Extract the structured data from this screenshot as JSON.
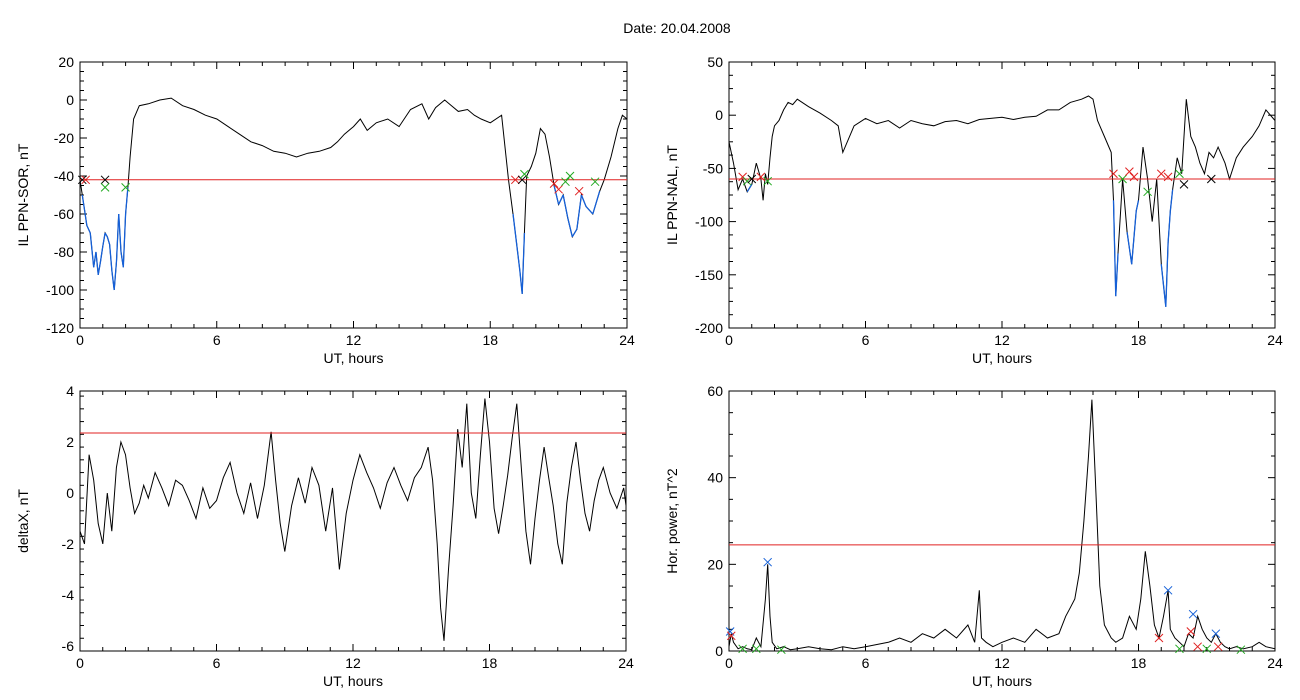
{
  "figure": {
    "title": "Date:  20.04.2008"
  },
  "chart_data": [
    {
      "id": "sor",
      "type": "line",
      "xlabel": "UT, hours",
      "ylabel": "IL PPN-SOR, nT",
      "xlim": [
        0,
        24
      ],
      "ylim": [
        -120,
        20
      ],
      "xticks": [
        0,
        6,
        12,
        18,
        24
      ],
      "yticks": [
        20,
        0,
        -20,
        -40,
        -60,
        -80,
        -100,
        -120
      ],
      "threshold": -42,
      "colors": {
        "line": "#000000",
        "below": "#1560d8",
        "threshold": "#e02020"
      },
      "series": [
        {
          "x": [
            0,
            0.1,
            0.2,
            0.3,
            0.45,
            0.6,
            0.7,
            0.8,
            0.9,
            1.0,
            1.1,
            1.2,
            1.3,
            1.4,
            1.5,
            1.6,
            1.7,
            1.8,
            1.9,
            2.0,
            2.1,
            2.2,
            2.35,
            2.6,
            3.0,
            3.5,
            4.0,
            4.5,
            5.0,
            5.5,
            6.0,
            6.5,
            7.0,
            7.5,
            8.0,
            8.5,
            9.0,
            9.5,
            10.0,
            10.5,
            11.0,
            11.3,
            11.6,
            12.0,
            12.3,
            12.6,
            13.0,
            13.5,
            14.0,
            14.5,
            15.0,
            15.3,
            15.6,
            16.0,
            16.3,
            16.6,
            17.0,
            17.3,
            17.6,
            18.0,
            18.5,
            18.8,
            19.0,
            19.15,
            19.3,
            19.4,
            19.5,
            19.6,
            19.8,
            20.0,
            20.2,
            20.4,
            20.6,
            20.8,
            21.0,
            21.2,
            21.4,
            21.6,
            21.8,
            22.0,
            22.2,
            22.5,
            22.8,
            23.0,
            23.3,
            23.6,
            23.8,
            24.0
          ],
          "y": [
            -42,
            -50,
            -58,
            -66,
            -70,
            -88,
            -80,
            -92,
            -85,
            -77,
            -70,
            -72,
            -76,
            -90,
            -100,
            -85,
            -60,
            -80,
            -88,
            -60,
            -46,
            -30,
            -10,
            -3,
            -2,
            0,
            1,
            -3,
            -5,
            -8,
            -10,
            -14,
            -18,
            -22,
            -24,
            -27,
            -28,
            -30,
            -28,
            -27,
            -25,
            -22,
            -18,
            -14,
            -10,
            -16,
            -12,
            -10,
            -14,
            -5,
            -2,
            -10,
            -4,
            0,
            -3,
            -6,
            -5,
            -8,
            -10,
            -12,
            -8,
            -42,
            -60,
            -75,
            -90,
            -102,
            -70,
            -40,
            -35,
            -28,
            -15,
            -18,
            -30,
            -45,
            -55,
            -50,
            -62,
            -72,
            -68,
            -50,
            -56,
            -60,
            -48,
            -42,
            -30,
            -15,
            -8,
            -10
          ]
        }
      ],
      "markers": [
        {
          "x": 0.1,
          "y": -42,
          "color": "#000000"
        },
        {
          "x": 0.25,
          "y": -42,
          "color": "#e02020"
        },
        {
          "x": 1.1,
          "y": -42,
          "color": "#000000"
        },
        {
          "x": 1.1,
          "y": -46,
          "color": "#22aa22"
        },
        {
          "x": 2.0,
          "y": -46,
          "color": "#22aa22"
        },
        {
          "x": 19.1,
          "y": -42,
          "color": "#e02020"
        },
        {
          "x": 19.4,
          "y": -42,
          "color": "#000000"
        },
        {
          "x": 19.5,
          "y": -39,
          "color": "#22aa22"
        },
        {
          "x": 20.8,
          "y": -44,
          "color": "#e02020"
        },
        {
          "x": 21.0,
          "y": -47,
          "color": "#e02020"
        },
        {
          "x": 21.3,
          "y": -43,
          "color": "#22aa22"
        },
        {
          "x": 21.5,
          "y": -40,
          "color": "#22aa22"
        },
        {
          "x": 21.9,
          "y": -48,
          "color": "#e02020"
        },
        {
          "x": 22.6,
          "y": -43,
          "color": "#22aa22"
        }
      ]
    },
    {
      "id": "nal",
      "type": "line",
      "xlabel": "UT, hours",
      "ylabel": "IL PPN-NAL, nT",
      "xlim": [
        0,
        24
      ],
      "ylim": [
        -200,
        50
      ],
      "xticks": [
        0,
        6,
        12,
        18,
        24
      ],
      "yticks": [
        50,
        0,
        -50,
        -100,
        -150,
        -200
      ],
      "threshold": -60,
      "colors": {
        "line": "#000000",
        "below": "#1560d8",
        "threshold": "#e02020"
      },
      "series": [
        {
          "x": [
            0,
            0.2,
            0.4,
            0.6,
            0.8,
            1.0,
            1.2,
            1.4,
            1.5,
            1.6,
            1.7,
            1.8,
            1.9,
            2.0,
            2.2,
            2.4,
            2.6,
            2.8,
            3.0,
            3.5,
            4.0,
            4.5,
            4.8,
            5.0,
            5.5,
            6.0,
            6.5,
            7.0,
            7.5,
            8.0,
            8.5,
            9.0,
            9.5,
            10.0,
            10.5,
            11.0,
            11.5,
            12.0,
            12.5,
            13.0,
            13.5,
            14.0,
            14.5,
            15.0,
            15.5,
            15.8,
            16.0,
            16.2,
            16.5,
            16.8,
            16.9,
            17.0,
            17.1,
            17.3,
            17.5,
            17.7,
            17.9,
            18.0,
            18.2,
            18.4,
            18.6,
            18.8,
            19.0,
            19.2,
            19.3,
            19.4,
            19.5,
            19.7,
            19.9,
            20.1,
            20.3,
            20.5,
            20.7,
            20.9,
            21.1,
            21.3,
            21.5,
            21.8,
            22.0,
            22.3,
            22.6,
            23.0,
            23.3,
            23.6,
            24.0
          ],
          "y": [
            -25,
            -45,
            -70,
            -60,
            -72,
            -65,
            -45,
            -60,
            -80,
            -55,
            -65,
            -40,
            -20,
            -10,
            -5,
            5,
            12,
            10,
            15,
            8,
            2,
            -5,
            -10,
            -35,
            -10,
            -3,
            -8,
            -5,
            -12,
            -5,
            -8,
            -10,
            -6,
            -5,
            -8,
            -4,
            -3,
            -2,
            -4,
            -2,
            -1,
            5,
            5,
            12,
            15,
            18,
            15,
            -5,
            -20,
            -35,
            -80,
            -170,
            -130,
            -60,
            -110,
            -140,
            -90,
            -80,
            -30,
            -60,
            -100,
            -60,
            -140,
            -180,
            -120,
            -90,
            -70,
            -40,
            -55,
            15,
            -20,
            -30,
            -45,
            -55,
            -35,
            -40,
            -30,
            -45,
            -60,
            -40,
            -30,
            -20,
            -10,
            5,
            -5
          ]
        }
      ],
      "markers": [
        {
          "x": 0.6,
          "y": -58,
          "color": "#e02020"
        },
        {
          "x": 0.8,
          "y": -62,
          "color": "#22aa22"
        },
        {
          "x": 1.0,
          "y": -60,
          "color": "#000000"
        },
        {
          "x": 1.4,
          "y": -58,
          "color": "#e02020"
        },
        {
          "x": 1.7,
          "y": -62,
          "color": "#22aa22"
        },
        {
          "x": 16.9,
          "y": -55,
          "color": "#e02020"
        },
        {
          "x": 17.3,
          "y": -60,
          "color": "#22aa22"
        },
        {
          "x": 17.6,
          "y": -53,
          "color": "#e02020"
        },
        {
          "x": 17.8,
          "y": -58,
          "color": "#e02020"
        },
        {
          "x": 18.4,
          "y": -72,
          "color": "#22aa22"
        },
        {
          "x": 19.0,
          "y": -55,
          "color": "#e02020"
        },
        {
          "x": 19.3,
          "y": -58,
          "color": "#e02020"
        },
        {
          "x": 19.8,
          "y": -55,
          "color": "#22aa22"
        },
        {
          "x": 20.0,
          "y": -65,
          "color": "#000000"
        },
        {
          "x": 21.2,
          "y": -60,
          "color": "#000000"
        }
      ]
    },
    {
      "id": "deltax",
      "type": "line",
      "xlabel": "UT, hours",
      "ylabel": "deltaX, nT",
      "xlim": [
        0,
        24
      ],
      "ylim": [
        -6.2,
        4
      ],
      "xticks": [
        0,
        6,
        12,
        18,
        24
      ],
      "yticks": [
        4,
        2,
        0,
        -2,
        -4,
        -6
      ],
      "threshold": 2.35,
      "colors": {
        "line": "#000000",
        "threshold": "#e02020"
      },
      "series": [
        {
          "x": [
            0,
            0.2,
            0.4,
            0.6,
            0.8,
            1.0,
            1.2,
            1.4,
            1.6,
            1.8,
            2.0,
            2.2,
            2.4,
            2.6,
            2.8,
            3.0,
            3.3,
            3.6,
            3.9,
            4.2,
            4.5,
            4.8,
            5.1,
            5.4,
            5.7,
            6.0,
            6.3,
            6.6,
            6.9,
            7.2,
            7.5,
            7.8,
            8.1,
            8.4,
            8.6,
            8.8,
            9.0,
            9.3,
            9.6,
            9.9,
            10.2,
            10.5,
            10.8,
            11.1,
            11.4,
            11.7,
            12.0,
            12.3,
            12.6,
            12.9,
            13.2,
            13.5,
            13.8,
            14.1,
            14.4,
            14.7,
            15.0,
            15.3,
            15.5,
            15.7,
            15.85,
            16.0,
            16.2,
            16.4,
            16.6,
            16.8,
            17.0,
            17.2,
            17.4,
            17.6,
            17.8,
            18.0,
            18.2,
            18.4,
            18.6,
            18.8,
            19.0,
            19.2,
            19.4,
            19.6,
            19.8,
            20.0,
            20.2,
            20.4,
            20.6,
            20.8,
            21.0,
            21.2,
            21.4,
            21.6,
            21.8,
            22.0,
            22.2,
            22.4,
            22.6,
            22.8,
            23.0,
            23.3,
            23.6,
            23.9,
            24.0
          ],
          "y": [
            -1.5,
            -2.0,
            1.5,
            0.5,
            -1.2,
            -2.0,
            0.0,
            -1.5,
            1.0,
            2.0,
            1.5,
            0.2,
            -0.8,
            -0.4,
            0.3,
            -0.2,
            0.8,
            0.2,
            -0.5,
            0.5,
            0.3,
            -0.3,
            -1.0,
            0.2,
            -0.6,
            -0.3,
            0.6,
            1.2,
            0.0,
            -0.8,
            0.4,
            -1.0,
            0.3,
            2.4,
            0.5,
            -1.2,
            -2.3,
            -0.5,
            0.6,
            -0.4,
            1.0,
            0.3,
            -1.5,
            0.2,
            -3.0,
            -0.8,
            0.5,
            1.5,
            0.8,
            0.2,
            -0.6,
            0.4,
            1.0,
            0.3,
            -0.3,
            0.6,
            1.0,
            1.8,
            0.5,
            -2.0,
            -4.5,
            -5.8,
            -3.0,
            -0.5,
            2.5,
            1.0,
            3.5,
            0.0,
            -1.0,
            1.5,
            3.7,
            2.0,
            -0.6,
            -1.6,
            -0.5,
            0.7,
            2.2,
            3.5,
            1.0,
            -1.5,
            -2.8,
            -1.0,
            0.5,
            1.8,
            0.6,
            -0.5,
            -2.0,
            -2.8,
            -0.4,
            1.0,
            2.0,
            0.5,
            -0.8,
            -1.5,
            -0.3,
            0.5,
            1.0,
            0.0,
            -0.6,
            0.2,
            -0.5
          ]
        }
      ]
    },
    {
      "id": "power",
      "type": "line",
      "xlabel": "UT, hours",
      "ylabel": "Hor. power, nT^2",
      "xlim": [
        0,
        24
      ],
      "ylim": [
        0,
        60
      ],
      "xticks": [
        0,
        6,
        12,
        18,
        24
      ],
      "yticks": [
        60,
        40,
        20,
        0
      ],
      "threshold": 24.5,
      "colors": {
        "line": "#000000",
        "threshold": "#e02020"
      },
      "series": [
        {
          "x": [
            0,
            0.1,
            0.2,
            0.4,
            0.6,
            0.8,
            1.0,
            1.2,
            1.4,
            1.6,
            1.7,
            1.8,
            1.9,
            2.1,
            2.4,
            2.7,
            3.0,
            3.5,
            4.0,
            4.5,
            5.0,
            5.5,
            6.0,
            6.5,
            7.0,
            7.5,
            8.0,
            8.5,
            9.0,
            9.5,
            10.0,
            10.5,
            10.8,
            11.0,
            11.1,
            11.3,
            11.6,
            12.0,
            12.5,
            13.0,
            13.5,
            14.0,
            14.5,
            14.8,
            15.0,
            15.2,
            15.4,
            15.6,
            15.8,
            15.95,
            16.1,
            16.3,
            16.5,
            16.8,
            17.0,
            17.3,
            17.6,
            17.9,
            18.1,
            18.3,
            18.5,
            18.7,
            18.9,
            19.1,
            19.3,
            19.4,
            19.6,
            19.8,
            20.0,
            20.2,
            20.4,
            20.6,
            20.8,
            21.0,
            21.2,
            21.4,
            21.6,
            21.8,
            22.0,
            22.3,
            22.6,
            23.0,
            23.3,
            23.6,
            24.0
          ],
          "y": [
            1,
            4,
            2,
            0.5,
            1,
            0.5,
            0.3,
            3,
            1,
            12,
            20,
            8,
            2,
            0.5,
            1,
            0.3,
            0.5,
            1,
            0.5,
            0.3,
            1,
            0.5,
            1,
            1.5,
            2,
            3,
            2,
            4,
            3,
            5,
            3,
            6,
            2,
            14,
            3,
            2,
            1,
            2,
            3,
            2,
            5,
            3,
            4,
            8,
            10,
            12,
            18,
            30,
            45,
            58,
            40,
            15,
            6,
            3,
            2,
            3,
            8,
            5,
            12,
            23,
            15,
            6,
            3,
            8,
            14,
            5,
            3,
            2,
            1,
            4,
            3,
            8,
            5,
            3,
            2,
            4,
            2,
            1,
            0.5,
            1,
            0.5,
            1,
            2,
            1,
            0.5
          ]
        }
      ],
      "markers": [
        {
          "x": 0.05,
          "y": 4.5,
          "color": "#1560d8"
        },
        {
          "x": 0.1,
          "y": 3.5,
          "color": "#e02020"
        },
        {
          "x": 0.6,
          "y": 0.5,
          "color": "#22aa22"
        },
        {
          "x": 1.2,
          "y": 0.5,
          "color": "#22aa22"
        },
        {
          "x": 1.7,
          "y": 20.5,
          "color": "#1560d8"
        },
        {
          "x": 2.3,
          "y": 0.3,
          "color": "#22aa22"
        },
        {
          "x": 18.9,
          "y": 3,
          "color": "#e02020"
        },
        {
          "x": 19.3,
          "y": 14,
          "color": "#1560d8"
        },
        {
          "x": 19.8,
          "y": 0.5,
          "color": "#22aa22"
        },
        {
          "x": 20.3,
          "y": 4.5,
          "color": "#e02020"
        },
        {
          "x": 20.4,
          "y": 8.5,
          "color": "#1560d8"
        },
        {
          "x": 20.6,
          "y": 1,
          "color": "#e02020"
        },
        {
          "x": 21.0,
          "y": 0.5,
          "color": "#22aa22"
        },
        {
          "x": 21.4,
          "y": 4,
          "color": "#1560d8"
        },
        {
          "x": 21.5,
          "y": 1,
          "color": "#e02020"
        },
        {
          "x": 22.5,
          "y": 0.3,
          "color": "#22aa22"
        }
      ]
    }
  ]
}
